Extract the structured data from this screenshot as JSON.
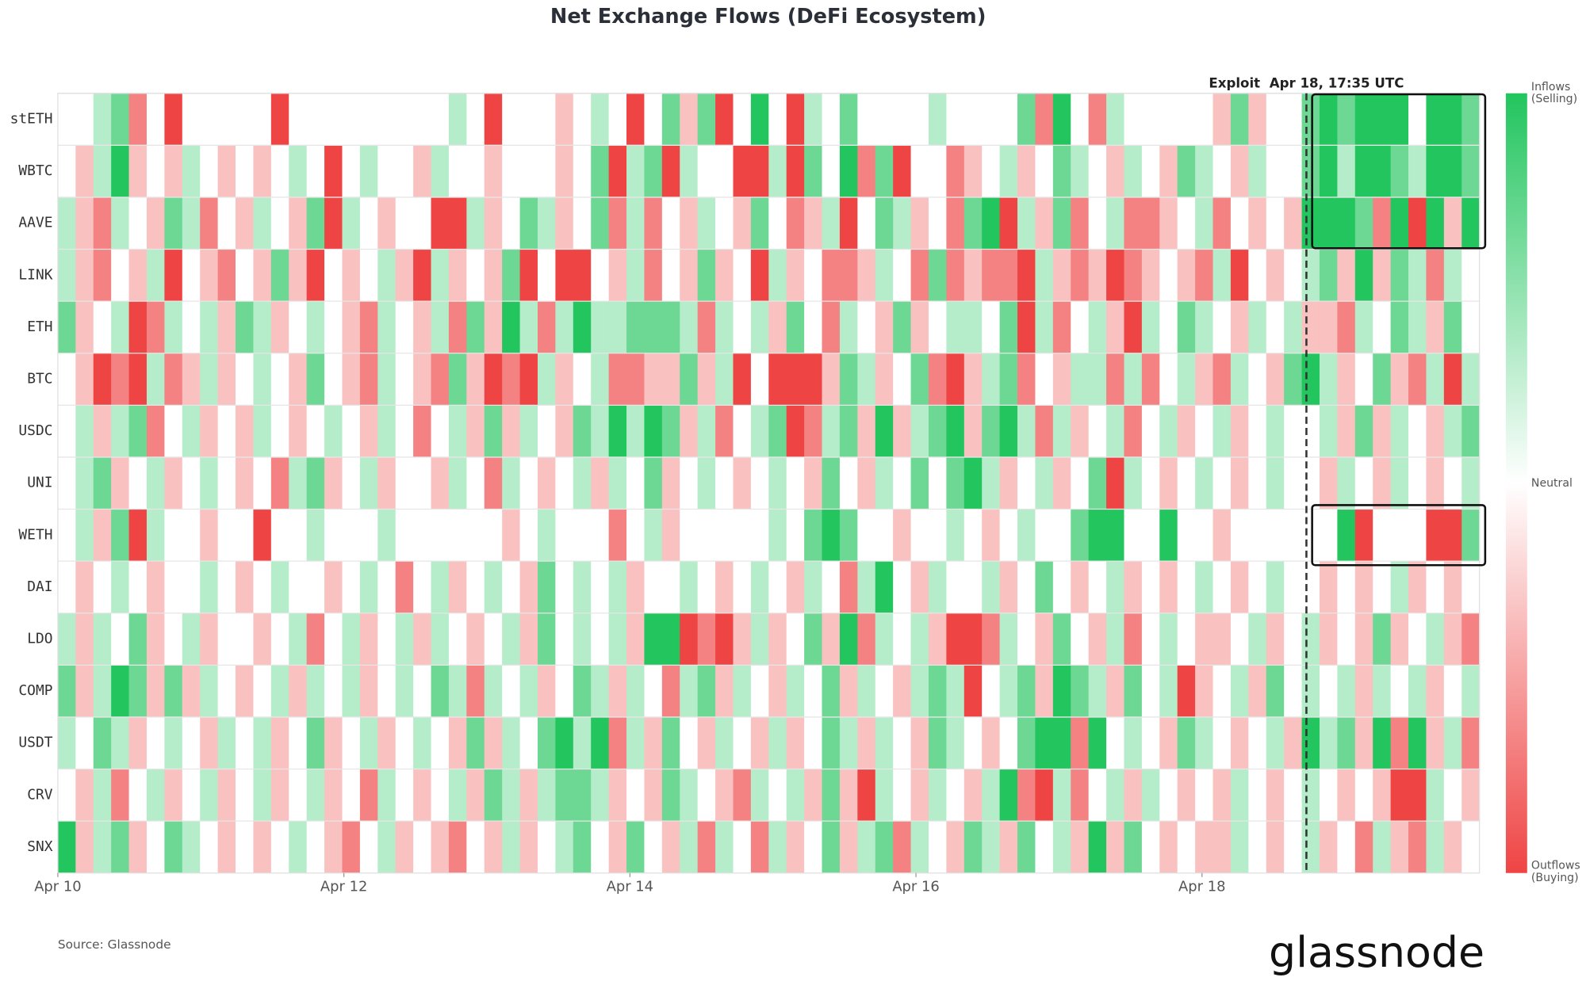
{
  "chart_data": {
    "type": "heatmap",
    "title": "Net Exchange Flows (DeFi Ecosystem)",
    "categories": [
      "stETH",
      "WBTC",
      "AAVE",
      "LINK",
      "ETH",
      "BTC",
      "USDC",
      "UNI",
      "WETH",
      "DAI",
      "LDO",
      "COMP",
      "USDT",
      "CRV",
      "SNX"
    ],
    "xlim": [
      10,
      19.94
    ],
    "xticks": [
      {
        "value": 10,
        "label": "Apr 10"
      },
      {
        "value": 12,
        "label": "Apr 12"
      },
      {
        "value": 14,
        "label": "Apr 14"
      },
      {
        "value": 16,
        "label": "Apr 16"
      },
      {
        "value": 18,
        "label": "Apr 18"
      }
    ],
    "vlim": [
      -3,
      3
    ],
    "colors": {
      "low": "#ef4444",
      "mid": "#ffffff",
      "high": "#22c55e"
    },
    "colorbar_labels": {
      "high": "Inflows (Selling)",
      "mid": "Neutral",
      "low": "Outflows (Buying)"
    },
    "annotation": {
      "text": "Exploit  Apr 18, 17:35 UTC",
      "x": 18.73
    },
    "highlights": [
      {
        "x": [
          18.77,
          19.98
        ],
        "rows": [
          "stETH",
          "AAVE"
        ]
      },
      {
        "x": [
          18.77,
          19.98
        ],
        "rows": [
          "WETH",
          "WETH"
        ]
      }
    ],
    "source": "Source: Glassnode",
    "brand": "glassnode",
    "values": [
      [
        0,
        0,
        1,
        2,
        -2,
        0,
        -3,
        0,
        0,
        0,
        0,
        0,
        -3,
        0,
        0,
        0,
        0,
        0,
        0,
        0,
        0,
        0,
        1,
        0,
        -3,
        0,
        0,
        0,
        -1,
        0,
        1,
        0,
        -3,
        0,
        2,
        -1,
        2,
        -3,
        0,
        3,
        0,
        -3,
        1,
        0,
        2,
        0,
        0,
        0,
        0,
        1,
        0,
        0,
        0,
        0,
        2,
        -2,
        3,
        0,
        -2,
        1,
        0,
        0,
        0,
        0,
        0,
        -1,
        2,
        -1,
        0,
        0,
        2,
        3,
        2,
        3,
        3,
        3,
        0,
        3,
        3,
        2
      ],
      [
        0,
        -1,
        1,
        3,
        -1,
        0,
        -1,
        1,
        0,
        -1,
        0,
        -1,
        0,
        1,
        0,
        -3,
        0,
        1,
        0,
        0,
        -1,
        1,
        0,
        0,
        -1,
        0,
        0,
        0,
        -1,
        0,
        2,
        -3,
        1,
        2,
        -3,
        1,
        0,
        0,
        -3,
        -3,
        1,
        -3,
        2,
        0,
        3,
        -2,
        2,
        -3,
        0,
        0,
        -2,
        -1,
        0,
        1,
        -1,
        0,
        2,
        1,
        0,
        -1,
        1,
        0,
        -1,
        2,
        1,
        0,
        -1,
        1,
        0,
        0,
        2,
        3,
        1,
        3,
        3,
        2,
        1,
        3,
        3,
        2
      ],
      [
        1,
        -1,
        -2,
        1,
        0,
        -1,
        2,
        1,
        -2,
        0,
        -1,
        1,
        0,
        -1,
        2,
        -3,
        1,
        0,
        -1,
        0,
        0,
        -3,
        -3,
        1,
        -1,
        0,
        2,
        1,
        -1,
        0,
        2,
        -2,
        1,
        -2,
        0,
        -1,
        1,
        0,
        -1,
        2,
        0,
        -2,
        -1,
        1,
        -3,
        0,
        2,
        1,
        -1,
        0,
        -2,
        2,
        3,
        -3,
        1,
        -1,
        2,
        -2,
        0,
        1,
        -2,
        -2,
        -1,
        0,
        1,
        -2,
        0,
        -1,
        0,
        -1,
        3,
        3,
        3,
        2,
        -2,
        3,
        -3,
        3,
        -1,
        3
      ],
      [
        1,
        -1,
        -2,
        0,
        -1,
        1,
        -3,
        0,
        -1,
        -2,
        0,
        -1,
        2,
        -1,
        -3,
        0,
        -1,
        0,
        1,
        -1,
        -3,
        1,
        -1,
        0,
        -1,
        2,
        -3,
        0,
        -3,
        -3,
        0,
        -1,
        1,
        -2,
        0,
        -1,
        2,
        -1,
        0,
        -3,
        1,
        -1,
        0,
        -2,
        -2,
        -1,
        1,
        0,
        -2,
        2,
        -2,
        -1,
        -2,
        -2,
        -3,
        1,
        -1,
        -2,
        -1,
        -3,
        -2,
        -1,
        0,
        -1,
        -2,
        1,
        -3,
        0,
        -1,
        0,
        1,
        2,
        -1,
        3,
        -1,
        2,
        1,
        -2,
        1,
        0
      ],
      [
        2,
        -1,
        0,
        1,
        -3,
        -2,
        1,
        0,
        1,
        -1,
        2,
        1,
        -1,
        0,
        1,
        0,
        -1,
        -2,
        1,
        0,
        -1,
        1,
        -2,
        2,
        -1,
        3,
        1,
        -2,
        1,
        3,
        1,
        1,
        2,
        2,
        2,
        1,
        -2,
        1,
        0,
        1,
        -1,
        2,
        0,
        -2,
        1,
        0,
        -1,
        2,
        -1,
        0,
        1,
        1,
        0,
        2,
        -3,
        1,
        -2,
        0,
        1,
        -1,
        -3,
        1,
        0,
        2,
        1,
        0,
        -1,
        1,
        0,
        1,
        -1,
        -1,
        -2,
        1,
        0,
        2,
        1,
        -1,
        2,
        0
      ],
      [
        0,
        -1,
        -3,
        -2,
        -3,
        1,
        -2,
        -1,
        1,
        -1,
        0,
        1,
        0,
        -1,
        2,
        0,
        -1,
        -2,
        1,
        0,
        -1,
        -2,
        2,
        -1,
        -3,
        -2,
        -3,
        1,
        -1,
        0,
        1,
        -2,
        -2,
        -1,
        -1,
        2,
        -1,
        1,
        -3,
        0,
        -3,
        -3,
        -3,
        -1,
        2,
        1,
        -1,
        0,
        2,
        -2,
        -3,
        -1,
        1,
        2,
        -2,
        0,
        -1,
        1,
        1,
        -2,
        1,
        -2,
        0,
        1,
        -1,
        -2,
        1,
        0,
        -1,
        2,
        3,
        1,
        -1,
        0,
        2,
        -1,
        -2,
        1,
        -3,
        1
      ],
      [
        0,
        1,
        -1,
        1,
        2,
        -2,
        0,
        1,
        -1,
        0,
        -1,
        1,
        0,
        -1,
        0,
        1,
        0,
        -1,
        1,
        0,
        -2,
        0,
        1,
        -1,
        2,
        -1,
        1,
        0,
        -1,
        2,
        1,
        3,
        1,
        3,
        2,
        -1,
        1,
        -2,
        0,
        1,
        2,
        -3,
        -2,
        1,
        2,
        -1,
        3,
        -1,
        1,
        2,
        3,
        -1,
        2,
        3,
        1,
        -2,
        1,
        -1,
        0,
        1,
        -2,
        0,
        1,
        -1,
        0,
        1,
        -1,
        0,
        1,
        0,
        0,
        1,
        -1,
        2,
        -1,
        1,
        0,
        -1,
        1,
        2
      ],
      [
        0,
        1,
        2,
        -1,
        0,
        1,
        -1,
        0,
        1,
        0,
        -1,
        0,
        -2,
        1,
        2,
        -1,
        0,
        1,
        -1,
        0,
        0,
        -1,
        1,
        0,
        -2,
        1,
        0,
        -1,
        0,
        1,
        -1,
        1,
        0,
        2,
        -1,
        0,
        1,
        0,
        -1,
        0,
        1,
        0,
        -1,
        2,
        0,
        -1,
        1,
        0,
        2,
        0,
        2,
        3,
        1,
        -1,
        0,
        1,
        -1,
        0,
        2,
        -3,
        1,
        0,
        -1,
        0,
        1,
        0,
        -1,
        0,
        1,
        0,
        0,
        -1,
        1,
        0,
        -1,
        1,
        0,
        -1,
        0,
        1
      ],
      [
        0,
        1,
        -1,
        2,
        -3,
        1,
        0,
        0,
        -1,
        0,
        0,
        -3,
        0,
        0,
        1,
        0,
        0,
        0,
        1,
        0,
        0,
        0,
        0,
        0,
        0,
        -1,
        0,
        1,
        0,
        0,
        0,
        -2,
        0,
        1,
        -1,
        0,
        0,
        0,
        0,
        0,
        1,
        0,
        2,
        3,
        2,
        0,
        0,
        -1,
        0,
        0,
        1,
        0,
        -1,
        0,
        1,
        0,
        0,
        2,
        3,
        3,
        0,
        0,
        3,
        0,
        0,
        -1,
        0,
        0,
        0,
        0,
        0,
        0,
        3,
        -3,
        0,
        0,
        0,
        -3,
        -3,
        2
      ],
      [
        0,
        -1,
        0,
        1,
        0,
        -1,
        0,
        0,
        1,
        0,
        -1,
        0,
        1,
        0,
        0,
        -1,
        0,
        1,
        0,
        -2,
        0,
        1,
        -1,
        0,
        1,
        0,
        -1,
        2,
        0,
        1,
        0,
        1,
        -1,
        0,
        0,
        1,
        0,
        -1,
        0,
        1,
        0,
        -1,
        1,
        0,
        -2,
        1,
        3,
        0,
        -1,
        1,
        0,
        0,
        1,
        -1,
        0,
        2,
        0,
        -1,
        0,
        1,
        -1,
        0,
        -1,
        0,
        1,
        0,
        -1,
        0,
        1,
        0,
        0,
        -1,
        0,
        -1,
        0,
        1,
        -1,
        0,
        -1,
        0
      ],
      [
        1,
        -1,
        1,
        0,
        2,
        -1,
        0,
        1,
        -1,
        0,
        0,
        -1,
        0,
        1,
        -2,
        0,
        1,
        -1,
        0,
        1,
        -1,
        1,
        0,
        -1,
        0,
        1,
        -1,
        2,
        0,
        1,
        0,
        1,
        -1,
        3,
        3,
        -3,
        -2,
        -3,
        -1,
        1,
        -1,
        0,
        2,
        -1,
        3,
        -2,
        1,
        0,
        1,
        -1,
        -3,
        -3,
        -2,
        1,
        0,
        -1,
        2,
        0,
        -1,
        1,
        -2,
        0,
        1,
        0,
        -1,
        -1,
        0,
        1,
        -1,
        0,
        1,
        -1,
        0,
        -1,
        2,
        -1,
        0,
        1,
        -1,
        -2
      ],
      [
        2,
        -1,
        1,
        3,
        2,
        -1,
        2,
        -1,
        1,
        0,
        -1,
        0,
        1,
        -1,
        1,
        0,
        1,
        -1,
        0,
        1,
        0,
        2,
        1,
        -2,
        1,
        0,
        1,
        -1,
        0,
        2,
        1,
        -1,
        1,
        0,
        -2,
        1,
        2,
        -1,
        1,
        0,
        -1,
        1,
        0,
        2,
        -1,
        1,
        0,
        -1,
        1,
        2,
        1,
        -3,
        0,
        1,
        2,
        -1,
        3,
        2,
        1,
        -1,
        2,
        0,
        1,
        -3,
        -1,
        0,
        1,
        -1,
        2,
        0,
        1,
        0,
        1,
        -1,
        1,
        0,
        1,
        -1,
        0,
        1
      ],
      [
        1,
        0,
        2,
        1,
        -1,
        0,
        1,
        0,
        -1,
        1,
        0,
        1,
        -1,
        0,
        2,
        -1,
        0,
        1,
        -1,
        0,
        1,
        0,
        -1,
        2,
        -1,
        1,
        0,
        2,
        3,
        1,
        3,
        -2,
        1,
        -1,
        2,
        0,
        -1,
        1,
        0,
        -1,
        1,
        -1,
        0,
        2,
        1,
        -1,
        1,
        0,
        -1,
        2,
        1,
        0,
        -1,
        0,
        2,
        3,
        3,
        -2,
        3,
        0,
        1,
        0,
        -1,
        2,
        1,
        0,
        -1,
        0,
        1,
        -1,
        3,
        1,
        2,
        -1,
        3,
        -2,
        3,
        -1,
        1,
        -2
      ],
      [
        0,
        -1,
        1,
        -2,
        0,
        1,
        -1,
        0,
        1,
        -1,
        0,
        1,
        -1,
        0,
        1,
        -1,
        0,
        -2,
        1,
        0,
        -1,
        0,
        1,
        -1,
        2,
        1,
        -1,
        1,
        2,
        2,
        1,
        -1,
        0,
        -1,
        2,
        1,
        0,
        -1,
        -2,
        1,
        0,
        1,
        -1,
        2,
        -1,
        -3,
        1,
        0,
        -1,
        1,
        0,
        -1,
        1,
        3,
        -2,
        -3,
        1,
        -2,
        0,
        1,
        -1,
        1,
        0,
        -1,
        0,
        -1,
        1,
        0,
        -1,
        0,
        1,
        0,
        -1,
        0,
        -1,
        -3,
        -3,
        1,
        0,
        -1
      ],
      [
        3,
        -1,
        1,
        2,
        -1,
        0,
        2,
        1,
        0,
        -1,
        0,
        -1,
        0,
        1,
        0,
        -1,
        -2,
        0,
        1,
        -1,
        0,
        -1,
        -2,
        0,
        -1,
        1,
        -1,
        0,
        1,
        2,
        0,
        -1,
        2,
        0,
        -1,
        1,
        -2,
        1,
        0,
        -2,
        1,
        -1,
        0,
        2,
        -1,
        1,
        2,
        -2,
        1,
        0,
        -1,
        2,
        1,
        -1,
        2,
        0,
        1,
        -1,
        3,
        -1,
        2,
        0,
        -1,
        0,
        -1,
        -1,
        1,
        0,
        -1,
        0,
        1,
        -1,
        0,
        -2,
        1,
        -1,
        -2,
        1,
        -1,
        0
      ]
    ]
  }
}
